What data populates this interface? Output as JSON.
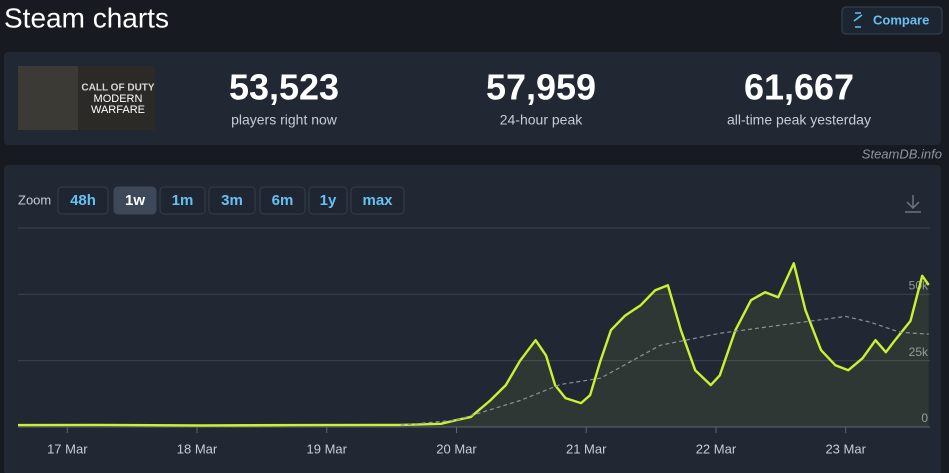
{
  "header": {
    "title": "Steam charts",
    "compare_button": "Compare"
  },
  "game": {
    "image_text": [
      "CALL OF DUTY",
      "MODERN",
      "WARFARE"
    ]
  },
  "stats": [
    {
      "value": "53,523",
      "label": "players right now"
    },
    {
      "value": "57,959",
      "label": "24-hour peak"
    },
    {
      "value": "61,667",
      "label": "all-time peak yesterday"
    }
  ],
  "source": "SteamDB.info",
  "zoom": {
    "label": "Zoom",
    "options": [
      "48h",
      "1w",
      "1m",
      "3m",
      "6m",
      "1y",
      "max"
    ],
    "selected": 1
  },
  "chart_data": {
    "type": "line",
    "xlim": [
      16.62,
      23.65
    ],
    "xticks": [
      {
        "value": 17,
        "label": "17 Mar"
      },
      {
        "value": 18,
        "label": "18 Mar"
      },
      {
        "value": 19,
        "label": "19 Mar"
      },
      {
        "value": 20,
        "label": "20 Mar"
      },
      {
        "value": 21,
        "label": "21 Mar"
      },
      {
        "value": 22,
        "label": "22 Mar"
      },
      {
        "value": 23,
        "label": "23 Mar"
      }
    ],
    "ylim": [
      0,
      75000
    ],
    "yticks": [
      0,
      {
        "value": 25000,
        "label": "25k"
      },
      {
        "value": 50000,
        "label": "50k"
      }
    ],
    "grid": true,
    "series": [
      {
        "color": "#c8f232",
        "style": "solid",
        "fill": true,
        "x": [
          16.62,
          17.25,
          18.03,
          18.8,
          19.57,
          19.88,
          20.0,
          20.11,
          20.26,
          20.38,
          20.49,
          20.61,
          20.69,
          20.76,
          20.84,
          20.96,
          21.03,
          21.11,
          21.19,
          21.3,
          21.42,
          21.53,
          21.63,
          21.73,
          21.84,
          21.96,
          22.03,
          22.15,
          22.27,
          22.38,
          22.48,
          22.6,
          22.69,
          22.81,
          22.92,
          23.02,
          23.13,
          23.23,
          23.31,
          23.38,
          23.5,
          23.59,
          23.64
        ],
        "values": [
          700,
          800,
          600,
          700,
          800,
          1200,
          2600,
          3800,
          10000,
          15800,
          25000,
          32700,
          27000,
          15800,
          10900,
          9000,
          12000,
          25000,
          36500,
          42000,
          45900,
          51500,
          53400,
          36500,
          21400,
          15800,
          19500,
          36500,
          47800,
          50800,
          48900,
          61700,
          44000,
          29000,
          23300,
          21400,
          25900,
          32700,
          28200,
          32700,
          40000,
          57000,
          53523
        ]
      },
      {
        "color": "#8a929c",
        "style": "dashed",
        "fill": false,
        "x": [
          19.57,
          20.0,
          20.49,
          20.8,
          21.11,
          21.57,
          22.03,
          22.5,
          23.0,
          23.19,
          23.42,
          23.64
        ],
        "values": [
          700,
          2600,
          10000,
          16000,
          18400,
          30800,
          35300,
          38400,
          41700,
          39500,
          35700,
          35000
        ]
      }
    ]
  }
}
